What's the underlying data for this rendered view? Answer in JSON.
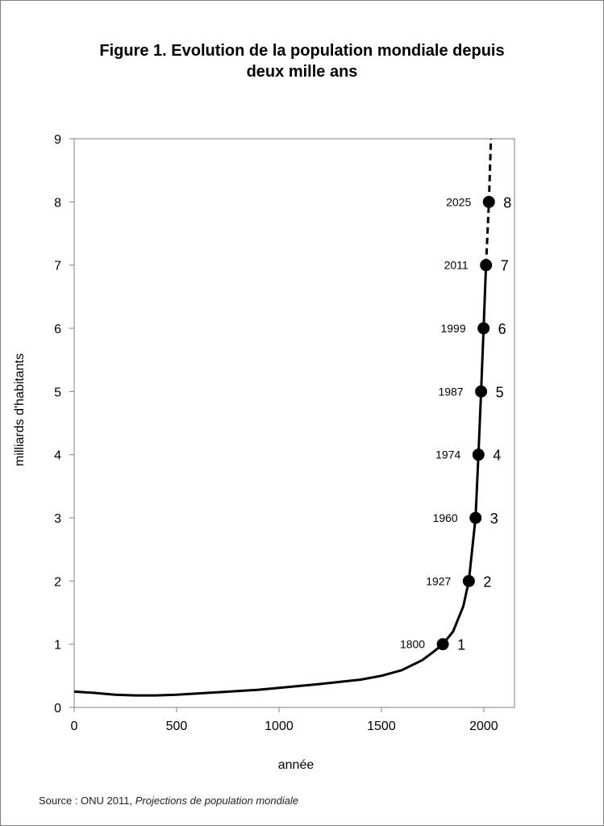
{
  "title_line1": "Figure 1. Evolution de la population mondiale depuis",
  "title_line2": "deux mille ans",
  "source": {
    "prefix": "Source : ONU 2011, ",
    "italic": "Projections de population mondiale"
  },
  "chart_data": {
    "type": "line",
    "xlabel": "année",
    "ylabel": "milliards d'habitants",
    "xlim": [
      0,
      2150
    ],
    "ylim": [
      0,
      9
    ],
    "xticks": [
      0,
      500,
      1000,
      1500,
      2000
    ],
    "yticks": [
      0,
      1,
      2,
      3,
      4,
      5,
      6,
      7,
      8,
      9
    ],
    "grid": false,
    "line_color": "#000000",
    "curve": [
      [
        0,
        0.25
      ],
      [
        100,
        0.23
      ],
      [
        200,
        0.2
      ],
      [
        300,
        0.19
      ],
      [
        400,
        0.19
      ],
      [
        500,
        0.2
      ],
      [
        700,
        0.24
      ],
      [
        900,
        0.28
      ],
      [
        1000,
        0.31
      ],
      [
        1200,
        0.37
      ],
      [
        1400,
        0.44
      ],
      [
        1500,
        0.5
      ],
      [
        1600,
        0.59
      ],
      [
        1700,
        0.75
      ],
      [
        1750,
        0.87
      ],
      [
        1800,
        1.0
      ],
      [
        1850,
        1.2
      ],
      [
        1900,
        1.6
      ],
      [
        1927,
        2.0
      ],
      [
        1960,
        3.0
      ],
      [
        1974,
        4.0
      ],
      [
        1987,
        5.0
      ],
      [
        1999,
        6.0
      ],
      [
        2011,
        7.0
      ]
    ],
    "projection": [
      [
        2011,
        7.0
      ],
      [
        2025,
        8.0
      ],
      [
        2035,
        9.0
      ]
    ],
    "milestones": [
      {
        "year": 1800,
        "year_label": "1800",
        "value": 1,
        "value_label": "1"
      },
      {
        "year": 1927,
        "year_label": "1927",
        "value": 2,
        "value_label": "2"
      },
      {
        "year": 1960,
        "year_label": "1960",
        "value": 3,
        "value_label": "3"
      },
      {
        "year": 1974,
        "year_label": "1974",
        "value": 4,
        "value_label": "4"
      },
      {
        "year": 1987,
        "year_label": "1987",
        "value": 5,
        "value_label": "5"
      },
      {
        "year": 1999,
        "year_label": "1999",
        "value": 6,
        "value_label": "6"
      },
      {
        "year": 2011,
        "year_label": "2011",
        "value": 7,
        "value_label": "7"
      },
      {
        "year": 2025,
        "year_label": "2025",
        "value": 8,
        "value_label": "8"
      }
    ]
  }
}
